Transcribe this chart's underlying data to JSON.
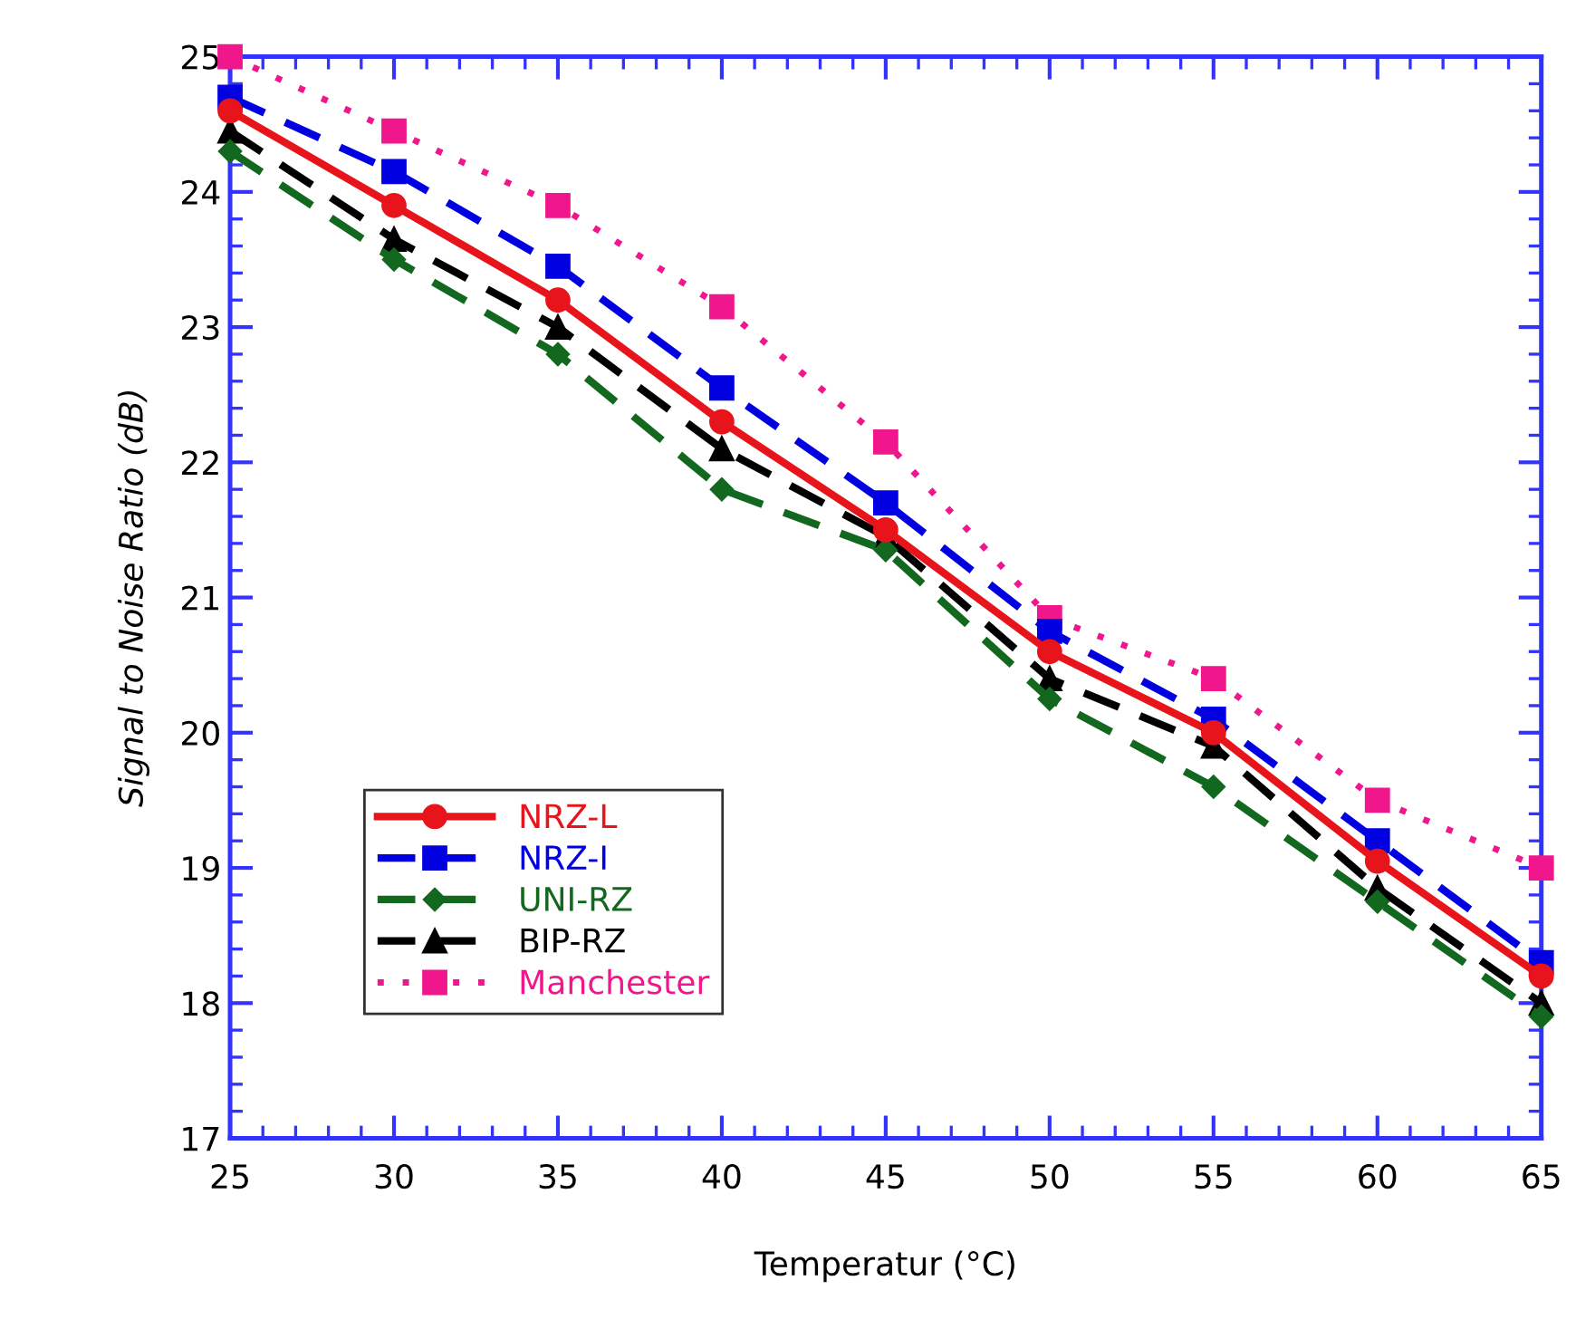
{
  "chart_data": {
    "type": "line",
    "xlabel": "Temperatur (°C)",
    "ylabel": "Signal to Noise Ratio (dB)",
    "x": [
      25,
      30,
      35,
      40,
      45,
      50,
      55,
      60,
      65
    ],
    "xlim": [
      25,
      65
    ],
    "xticks": [
      25,
      30,
      35,
      40,
      45,
      50,
      55,
      60,
      65
    ],
    "ylim": [
      17,
      25
    ],
    "yticks": [
      17,
      18,
      19,
      20,
      21,
      22,
      23,
      24,
      25
    ],
    "grid": false,
    "legend": "bottom left",
    "series": [
      {
        "name": "NRZ-L",
        "color": "#e8141b",
        "marker": "circle",
        "line_style": "solid",
        "values": [
          24.6,
          23.9,
          23.2,
          22.3,
          21.5,
          20.6,
          20.0,
          19.05,
          18.2
        ]
      },
      {
        "name": "NRZ-I",
        "color": "#0000e0",
        "marker": "square",
        "line_style": "dashed",
        "values": [
          24.7,
          24.15,
          23.45,
          22.55,
          21.7,
          20.75,
          20.1,
          19.2,
          18.3
        ]
      },
      {
        "name": "UNI-RZ",
        "color": "#12681e",
        "marker": "diamond",
        "line_style": "dashed",
        "values": [
          24.3,
          23.5,
          22.8,
          21.8,
          21.35,
          20.25,
          19.6,
          18.75,
          17.9
        ]
      },
      {
        "name": "BIP-RZ",
        "color": "#000000",
        "marker": "triangle",
        "line_style": "dashed",
        "values": [
          24.45,
          23.65,
          23.0,
          22.1,
          21.45,
          20.4,
          19.9,
          18.85,
          18.0
        ]
      },
      {
        "name": "Manchester",
        "color": "#f0168c",
        "marker": "square",
        "line_style": "dotted",
        "values": [
          25.0,
          24.45,
          23.9,
          23.15,
          22.15,
          20.85,
          20.4,
          19.5,
          19.0
        ]
      }
    ]
  }
}
